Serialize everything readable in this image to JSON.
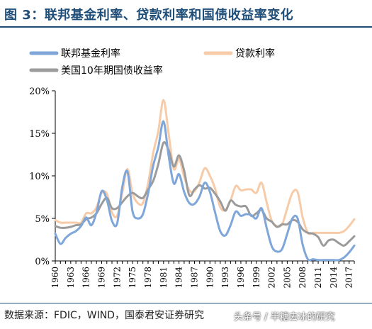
{
  "figure": {
    "title": "图 3：联邦基金利率、贷款利率和国债收益率变化",
    "source": "数据来源：FDIC，WIND，国泰君安证券研究",
    "watermark": "头条号 / 半糖去冰的研究"
  },
  "chart_data": {
    "type": "line",
    "title": "",
    "xlabel": "",
    "ylabel": "",
    "ylim": [
      0,
      20
    ],
    "y_ticks": [
      "0%",
      "5%",
      "10%",
      "15%",
      "20%"
    ],
    "x_ticks": [
      "1960",
      "1963",
      "1966",
      "1969",
      "1972",
      "1975",
      "1978",
      "1981",
      "1984",
      "1987",
      "1990",
      "1993",
      "1996",
      "1999",
      "2002",
      "2005",
      "2008",
      "2011",
      "2014",
      "2017"
    ],
    "legend": "top-left",
    "grid": false,
    "x": [
      1960,
      1961,
      1962,
      1963,
      1964,
      1965,
      1966,
      1967,
      1968,
      1969,
      1970,
      1971,
      1972,
      1973,
      1974,
      1975,
      1976,
      1977,
      1978,
      1979,
      1980,
      1981,
      1982,
      1983,
      1984,
      1985,
      1986,
      1987,
      1988,
      1989,
      1990,
      1991,
      1992,
      1993,
      1994,
      1995,
      1996,
      1997,
      1998,
      1999,
      2000,
      2001,
      2002,
      2003,
      2004,
      2005,
      2006,
      2007,
      2008,
      2009,
      2010,
      2011,
      2012,
      2013,
      2014,
      2015,
      2016,
      2017,
      2018
    ],
    "series": [
      {
        "name": "联邦基金利率",
        "color": "#7ea6d8",
        "width": 3,
        "values": [
          3.2,
          2.0,
          2.7,
          3.2,
          3.5,
          4.1,
          5.1,
          4.2,
          5.7,
          8.2,
          7.2,
          4.7,
          4.4,
          8.7,
          10.5,
          5.8,
          5.0,
          5.5,
          7.9,
          11.2,
          13.4,
          16.4,
          12.3,
          9.1,
          10.2,
          8.1,
          6.8,
          6.7,
          7.6,
          9.2,
          8.1,
          5.7,
          3.5,
          3.0,
          4.2,
          5.8,
          5.3,
          5.5,
          5.4,
          5.0,
          6.2,
          3.9,
          1.7,
          1.1,
          1.4,
          3.2,
          5.0,
          5.0,
          1.9,
          0.2,
          0.2,
          0.1,
          0.1,
          0.1,
          0.1,
          0.1,
          0.4,
          1.0,
          1.8
        ]
      },
      {
        "name": "贷款利率",
        "color": "#f7cba8",
        "width": 3,
        "values": [
          4.8,
          4.5,
          4.5,
          4.5,
          4.5,
          4.5,
          5.6,
          5.6,
          6.3,
          8.0,
          7.9,
          5.7,
          5.3,
          8.0,
          10.8,
          7.9,
          6.8,
          6.8,
          9.1,
          12.7,
          15.3,
          18.9,
          14.9,
          10.8,
          12.0,
          9.9,
          8.3,
          8.2,
          9.3,
          10.9,
          10.0,
          8.5,
          6.3,
          6.0,
          7.1,
          8.8,
          8.3,
          8.4,
          8.4,
          8.0,
          9.2,
          6.9,
          4.7,
          4.1,
          4.3,
          6.2,
          8.0,
          8.1,
          5.1,
          3.3,
          3.3,
          3.3,
          3.3,
          3.3,
          3.3,
          3.3,
          3.5,
          4.1,
          4.9
        ]
      },
      {
        "name": "美国10年期国债收益率",
        "color": "#9b9b9b",
        "width": 3,
        "values": [
          4.1,
          3.9,
          3.9,
          4.0,
          4.2,
          4.3,
          4.9,
          5.1,
          5.6,
          6.7,
          7.4,
          6.2,
          6.2,
          6.9,
          7.6,
          8.0,
          7.6,
          7.4,
          8.4,
          9.4,
          11.4,
          13.9,
          13.0,
          11.1,
          12.4,
          10.6,
          7.7,
          8.4,
          8.9,
          8.5,
          8.6,
          7.9,
          7.0,
          5.9,
          7.1,
          6.6,
          6.4,
          6.4,
          5.3,
          5.6,
          6.0,
          5.0,
          4.6,
          4.0,
          4.3,
          4.3,
          4.8,
          4.6,
          3.7,
          3.3,
          3.2,
          2.8,
          1.8,
          2.4,
          2.5,
          2.1,
          1.8,
          2.3,
          2.9
        ]
      }
    ]
  }
}
